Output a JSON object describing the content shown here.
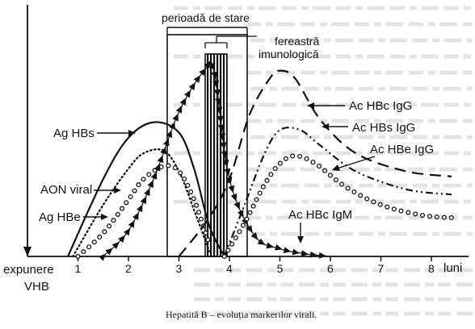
{
  "figure": {
    "header_period": "perioadă de stare",
    "header_window_line1": "fereastră",
    "header_window_line2": "imunologică",
    "xaxis_start_line1": "expunere",
    "xaxis_start_line2": "VHB",
    "xaxis_unit": "luni",
    "x_ticks": [
      "1",
      "2",
      "3",
      "4",
      "5",
      "6",
      "7",
      "8"
    ],
    "caption": "Hepatită B – evoluția markerilor virali."
  },
  "markers": {
    "ag_hbs": "Ag HBs",
    "aon_viral": "AON viral",
    "ag_hbe": "Ag HBe",
    "ac_hbc_igg": "Ac HBc IgG",
    "ac_hbs_igg": "Ac HBs IgG",
    "ac_hbe_igg": "Ac HBe IgG",
    "ac_hbc_igm": "Ac HBc IgM"
  },
  "colors": {
    "ink": "#111111",
    "bleed_through": "#d6d6d6",
    "paper": "#ffffff"
  },
  "chart_data": {
    "type": "line",
    "x_unit": "luni",
    "xlim": [
      0,
      8.5
    ],
    "series": [
      {
        "name": "Ag HBs",
        "style": "solid",
        "x": [
          0.8,
          1.5,
          2.0,
          2.5,
          3.0,
          3.3,
          3.6,
          3.9
        ],
        "y": [
          0.0,
          0.6,
          0.92,
          1.04,
          0.96,
          0.68,
          0.24,
          0.0
        ]
      },
      {
        "name": "AON viral",
        "style": "dotted",
        "x": [
          0.9,
          1.5,
          2.0,
          2.3,
          2.7,
          3.0,
          3.3,
          3.6
        ],
        "y": [
          0.0,
          0.4,
          0.68,
          0.8,
          0.82,
          0.66,
          0.36,
          0.04
        ]
      },
      {
        "name": "Ag HBe",
        "style": "open-circles",
        "x": [
          1.0,
          1.5,
          2.0,
          2.3,
          2.7,
          3.0,
          3.3,
          3.6
        ],
        "y": [
          0.0,
          0.18,
          0.44,
          0.6,
          0.7,
          0.66,
          0.44,
          0.1
        ]
      },
      {
        "name": "Ac HBc IgM",
        "style": "triangles",
        "x": [
          1.5,
          2.0,
          2.5,
          3.0,
          3.5,
          3.7,
          4.0,
          4.5,
          5.0,
          5.5,
          6.0
        ],
        "y": [
          0.0,
          0.2,
          0.6,
          1.12,
          1.44,
          1.43,
          0.6,
          0.16,
          0.06,
          0.02,
          0.0
        ]
      },
      {
        "name": "Ac HBc IgG",
        "style": "long-dash",
        "x": [
          3.0,
          3.6,
          4.0,
          4.4,
          4.8,
          5.0,
          5.3,
          5.8,
          6.5,
          7.5,
          8.4
        ],
        "y": [
          0.0,
          0.3,
          0.6,
          1.1,
          1.38,
          1.44,
          1.38,
          1.06,
          0.8,
          0.66,
          0.62
        ]
      },
      {
        "name": "Ac HBs IgG",
        "style": "dash-dot-dot",
        "x": [
          3.9,
          4.3,
          4.7,
          5.0,
          5.4,
          5.8,
          6.5,
          7.5,
          8.4
        ],
        "y": [
          0.0,
          0.4,
          0.8,
          0.98,
          0.98,
          0.86,
          0.66,
          0.52,
          0.48
        ]
      },
      {
        "name": "Ac HBe IgG",
        "style": "open-circles",
        "x": [
          3.9,
          4.3,
          4.7,
          5.0,
          5.3,
          5.7,
          6.3,
          7.0,
          7.8,
          8.4
        ],
        "y": [
          0.0,
          0.26,
          0.56,
          0.72,
          0.78,
          0.72,
          0.54,
          0.4,
          0.32,
          0.3
        ]
      }
    ],
    "bands": [
      {
        "name": "perioadă de stare",
        "x": [
          2.6,
          4.05
        ]
      },
      {
        "name": "fereastră imunologică",
        "x": [
          3.6,
          4.0
        ]
      }
    ]
  }
}
